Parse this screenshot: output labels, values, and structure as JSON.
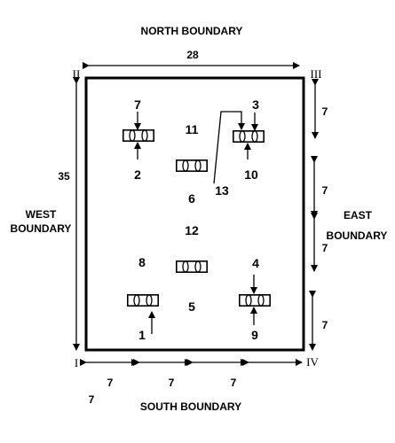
{
  "boundaries": {
    "north": "NORTH BOUNDARY",
    "south": "SOUTH BOUNDARY",
    "west_line1": "WEST",
    "west_line2": "BOUNDARY",
    "east_line1": "EAST",
    "east_line2": "BOUNDARY"
  },
  "corners": {
    "bottom_left": "I",
    "top_left": "II",
    "top_right": "III",
    "bottom_right": "IV"
  },
  "dimensions": {
    "top_width": "28",
    "left_height": "35",
    "right_1": "7",
    "right_2": "7",
    "right_3": "7",
    "right_4": "7",
    "bottom_1": "7",
    "bottom_2": "7",
    "bottom_3": "7",
    "bottom_extra": "7"
  },
  "points": {
    "p1": "1",
    "p2": "2",
    "p3": "3",
    "p4": "4",
    "p5": "5",
    "p6": "6",
    "p7": "7",
    "p8": "8",
    "p9": "9",
    "p10": "10",
    "p11": "11",
    "p12": "12",
    "p13": "13"
  }
}
